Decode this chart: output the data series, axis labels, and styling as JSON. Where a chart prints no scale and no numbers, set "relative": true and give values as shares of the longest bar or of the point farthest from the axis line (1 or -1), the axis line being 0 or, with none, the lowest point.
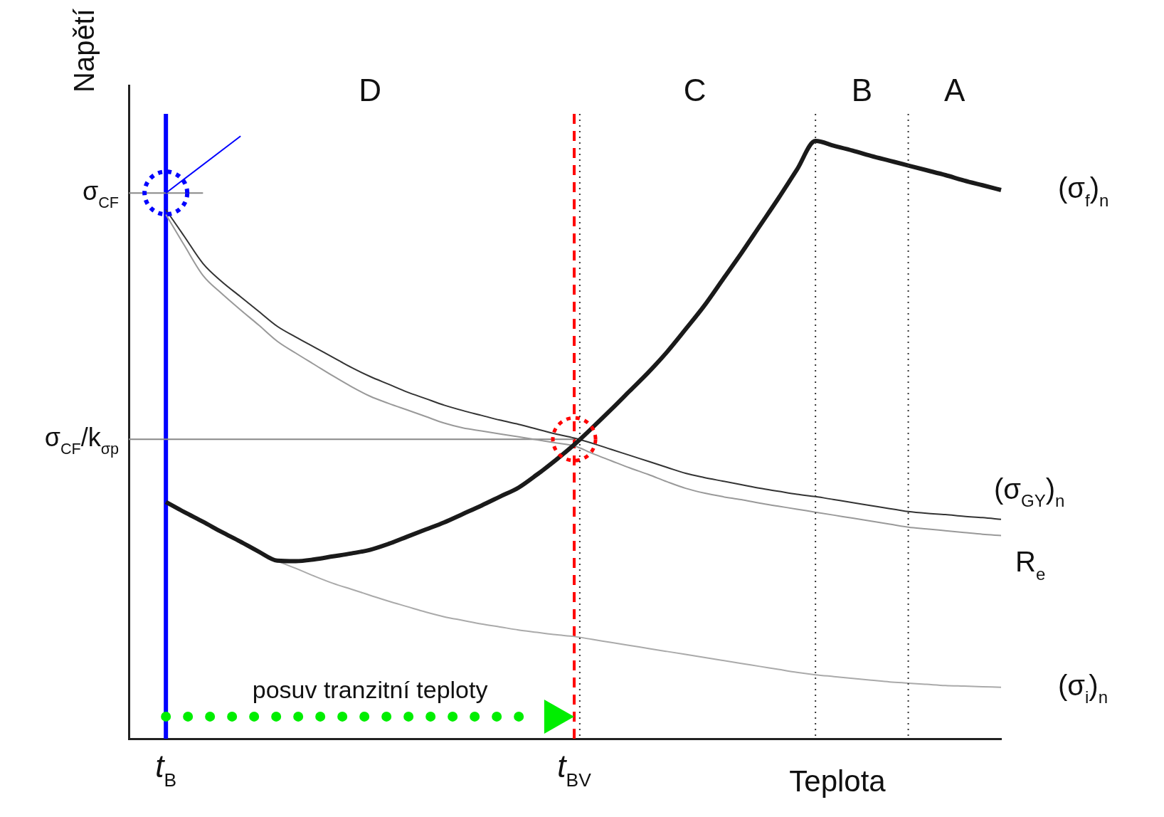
{
  "chart_data": {
    "type": "line",
    "relative": true,
    "ylabel": "Napětí",
    "xlabel": "Teplota",
    "categories": [
      null,
      null,
      "t$_{B}$",
      null,
      null,
      null,
      null,
      null,
      null,
      null,
      null,
      null,
      null,
      null,
      null,
      null,
      null,
      null,
      null,
      null,
      null,
      null,
      null,
      null,
      "t$_{BV}$",
      null,
      null,
      null,
      null,
      null,
      null,
      null,
      null,
      null,
      null,
      null,
      null,
      null,
      null,
      null,
      null,
      null,
      null,
      null,
      null,
      null,
      null,
      null
    ],
    "grid": false,
    "legend": false,
    "marker": "none",
    "line_style": "solid",
    "series": [
      {
        "name": "(σ$_{f}$)$_{n}$",
        "color": "#1a1a1a",
        "values": [
          null,
          null,
          0.396,
          0.379,
          0.363,
          0.346,
          0.33,
          0.313,
          0.298,
          0.297,
          0.3,
          0.305,
          0.31,
          0.316,
          0.326,
          0.338,
          0.35,
          0.362,
          0.376,
          0.39,
          0.405,
          0.42,
          0.442,
          0.466,
          0.492,
          0.521,
          0.551,
          0.582,
          0.613,
          0.647,
          0.685,
          0.724,
          0.768,
          0.812,
          0.858,
          0.904,
          0.952,
          1.0,
          0.992,
          0.984,
          0.975,
          0.967,
          0.959,
          0.951,
          0.943,
          0.934,
          0.926,
          0.918
        ]
      },
      {
        "name": "(σ$_{GY}$)$_{n}$",
        "color": "#333333",
        "values": [
          null,
          null,
          0.885,
          0.84,
          0.795,
          0.765,
          0.74,
          0.715,
          0.69,
          0.672,
          0.655,
          0.638,
          0.621,
          0.606,
          0.593,
          0.58,
          0.569,
          0.558,
          0.549,
          0.541,
          0.533,
          0.526,
          0.518,
          0.51,
          0.503,
          0.494,
          0.484,
          0.474,
          0.464,
          0.454,
          0.444,
          0.437,
          0.431,
          0.425,
          0.419,
          0.414,
          0.409,
          0.405,
          0.4,
          0.395,
          0.39,
          0.385,
          0.38,
          0.377,
          0.375,
          0.372,
          0.37,
          0.367
        ]
      },
      {
        "name": "R$_{e}$",
        "color": "#999999",
        "values": [
          null,
          null,
          0.877,
          0.825,
          0.775,
          0.745,
          0.718,
          0.692,
          0.665,
          0.645,
          0.626,
          0.607,
          0.589,
          0.573,
          0.561,
          0.55,
          0.539,
          0.528,
          0.52,
          0.515,
          0.51,
          0.505,
          0.5,
          0.495,
          0.49,
          0.477,
          0.465,
          0.453,
          0.442,
          0.43,
          0.419,
          0.411,
          0.405,
          0.4,
          0.394,
          0.389,
          0.384,
          0.379,
          0.374,
          0.369,
          0.364,
          0.359,
          0.354,
          0.351,
          0.348,
          0.345,
          0.342,
          0.34
        ]
      },
      {
        "name": "(σ$_{i}$)$_{n}$",
        "color": "#aaaaaa",
        "values": [
          null,
          null,
          null,
          null,
          null,
          null,
          null,
          null,
          0.297,
          0.285,
          0.272,
          0.26,
          0.25,
          0.24,
          0.23,
          0.221,
          0.212,
          0.204,
          0.198,
          0.192,
          0.187,
          0.182,
          0.178,
          0.174,
          0.171,
          0.166,
          0.161,
          0.156,
          0.151,
          0.146,
          0.141,
          0.136,
          0.131,
          0.126,
          0.121,
          0.116,
          0.111,
          0.107,
          0.104,
          0.101,
          0.098,
          0.095,
          0.093,
          0.091,
          0.089,
          0.088,
          0.087,
          0.086
        ]
      },
      {
        "color": "#888888",
        "values": [
          0.913,
          0.913,
          0.913,
          0.913,
          0.913,
          null,
          null,
          null,
          null,
          null,
          null,
          null,
          null,
          null,
          null,
          null,
          null,
          null,
          null,
          null,
          null,
          null,
          null,
          null,
          null,
          null,
          null,
          null,
          null,
          null,
          null,
          null,
          null,
          null,
          null,
          null,
          null,
          null,
          null,
          null,
          null,
          null,
          null,
          null,
          null,
          null,
          null,
          null
        ]
      },
      {
        "color": "#888888",
        "values": [
          0.501,
          0.501,
          0.501,
          0.501,
          0.501,
          0.501,
          0.501,
          0.501,
          0.501,
          0.501,
          0.501,
          0.501,
          0.501,
          0.501,
          0.501,
          0.501,
          0.501,
          0.501,
          0.501,
          0.501,
          0.501,
          0.501,
          0.501,
          0.501,
          0.501,
          null,
          null,
          null,
          null,
          null,
          null,
          null,
          null,
          null,
          null,
          null,
          null,
          null,
          null,
          null,
          null,
          null,
          null,
          null,
          null,
          null,
          null,
          null
        ]
      },
      {
        "color": "#00ee00",
        "line_style": "dotted",
        "values": [
          null,
          null,
          0.037,
          0.037,
          0.037,
          0.037,
          0.037,
          0.037,
          0.037,
          0.037,
          0.037,
          0.037,
          0.037,
          0.037,
          0.037,
          0.037,
          0.037,
          0.037,
          0.037,
          0.037,
          0.037,
          0.037,
          0.037,
          null,
          null,
          null,
          null,
          null,
          null,
          null,
          null,
          null,
          null,
          null,
          null,
          null,
          null,
          null,
          null,
          null,
          null,
          null,
          null,
          null,
          null,
          null,
          null,
          null
        ]
      }
    ],
    "ref_lines": [
      {
        "axis": "x",
        "value": "t$_{B}$",
        "color": "#0000ff",
        "line_style": "solid"
      },
      {
        "axis": "x",
        "value": "t$_{BV}$",
        "color": "#ff0000",
        "line_style": "dashed"
      }
    ],
    "annotations": [
      "D",
      "C",
      "B",
      "A",
      "posuv tranzitní teploty",
      "σ$_{CF}$",
      "σ$_{CF}$/k$_{σp}$"
    ]
  }
}
